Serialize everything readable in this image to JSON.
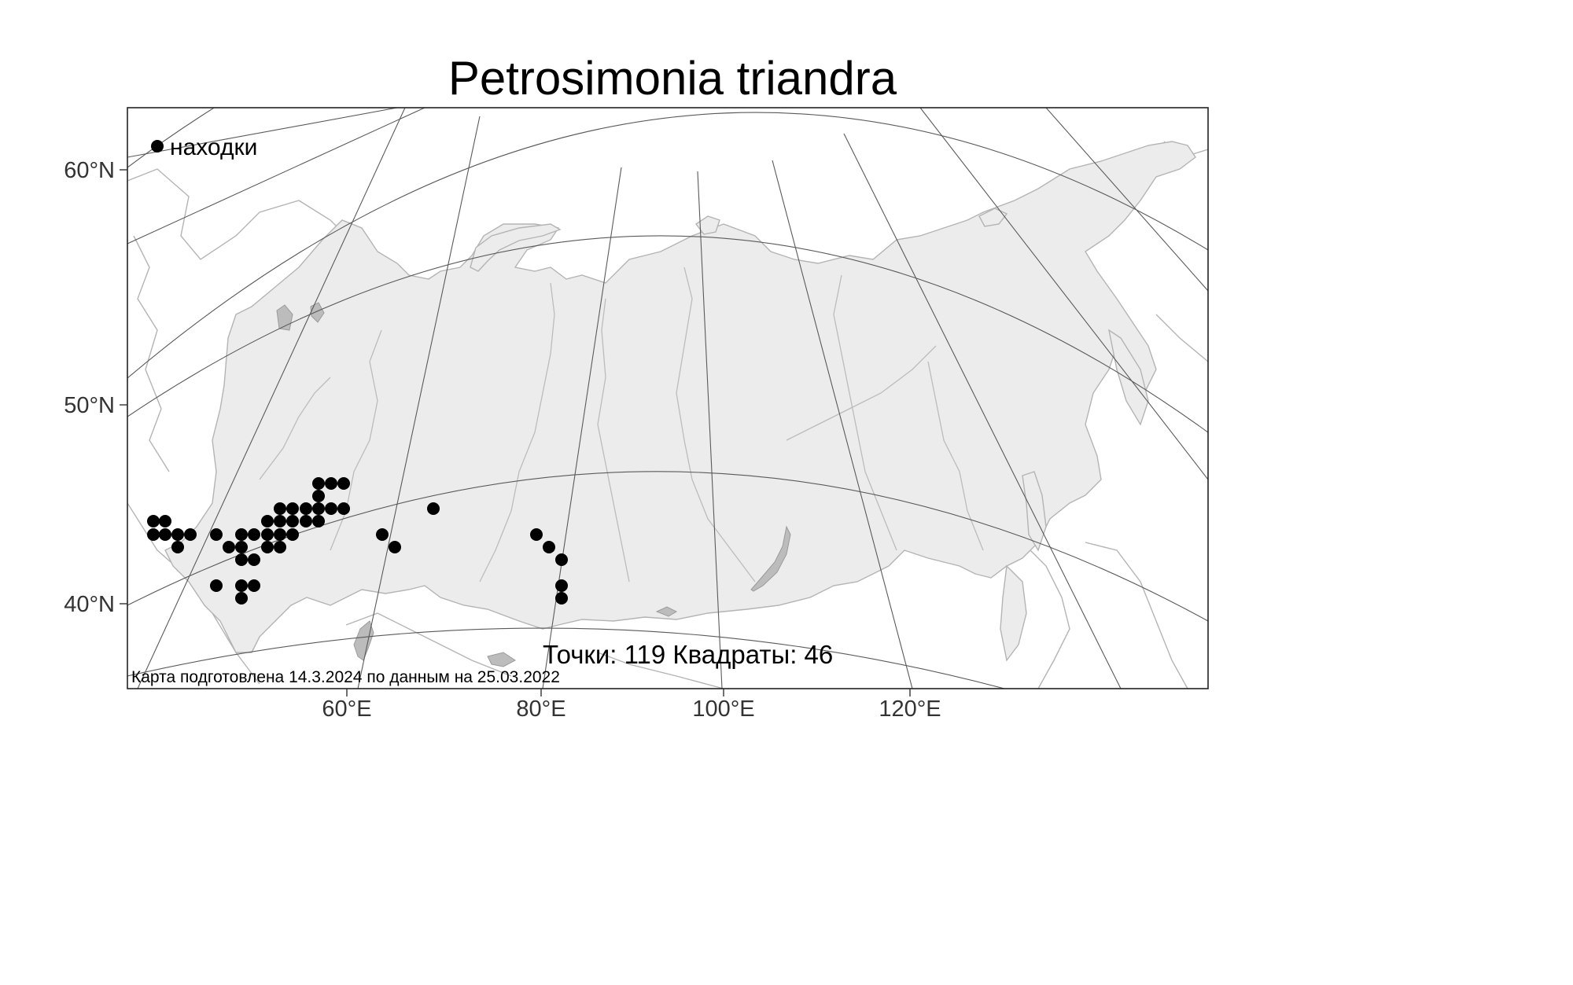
{
  "title": "Petrosimonia triandra",
  "legend": {
    "label": "находки"
  },
  "stats": "Точки: 119 Квадраты: 46",
  "note": "Карта подготовлена 14.3.2024 по данным на 25.03.2022",
  "lat_labels": [
    "60°N",
    "50°N",
    "40°N"
  ],
  "lon_labels": [
    "60°E",
    "80°E",
    "100°E",
    "120°E"
  ],
  "colors": {
    "land": "#ececec",
    "water": "#bcbcbc",
    "point": "#000000"
  },
  "finds": [
    [
      195,
      663
    ],
    [
      210,
      663
    ],
    [
      195,
      680
    ],
    [
      210,
      680
    ],
    [
      226,
      680
    ],
    [
      242,
      680
    ],
    [
      226,
      696
    ],
    [
      275,
      680
    ],
    [
      291,
      696
    ],
    [
      307,
      680
    ],
    [
      323,
      680
    ],
    [
      307,
      696
    ],
    [
      307,
      712
    ],
    [
      323,
      712
    ],
    [
      340,
      663
    ],
    [
      340,
      680
    ],
    [
      340,
      696
    ],
    [
      356,
      647
    ],
    [
      356,
      663
    ],
    [
      356,
      680
    ],
    [
      356,
      696
    ],
    [
      372,
      647
    ],
    [
      372,
      663
    ],
    [
      372,
      680
    ],
    [
      389,
      647
    ],
    [
      389,
      663
    ],
    [
      405,
      615
    ],
    [
      405,
      631
    ],
    [
      405,
      647
    ],
    [
      405,
      663
    ],
    [
      421,
      615
    ],
    [
      421,
      647
    ],
    [
      437,
      615
    ],
    [
      437,
      647
    ],
    [
      551,
      647
    ],
    [
      486,
      680
    ],
    [
      502,
      696
    ],
    [
      682,
      680
    ],
    [
      698,
      696
    ],
    [
      714,
      712
    ],
    [
      275,
      745
    ],
    [
      307,
      745
    ],
    [
      323,
      745
    ],
    [
      307,
      761
    ],
    [
      714,
      745
    ],
    [
      714,
      761
    ]
  ]
}
